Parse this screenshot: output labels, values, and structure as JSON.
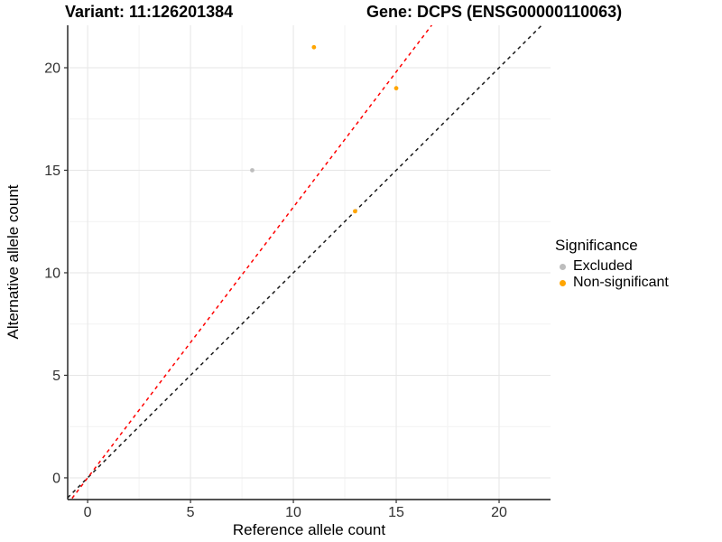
{
  "header": {
    "title_variant": "Variant: 11:126201384",
    "title_gene": "Gene: DCPS (ENSG00000110063)"
  },
  "chart_data": {
    "type": "scatter",
    "title": "Variant: 11:126201384  /  Gene: DCPS (ENSG00000110063)",
    "xlabel": "Reference allele count",
    "ylabel": "Alternative allele count",
    "xlim": [
      -0.97,
      22.5
    ],
    "ylim": [
      -1.06,
      22.07
    ],
    "x_major_ticks": [
      0,
      5,
      10,
      15,
      20
    ],
    "y_major_ticks": [
      0,
      5,
      10,
      15,
      20
    ],
    "x_minor_ticks": [
      2.5,
      7.5,
      12.5,
      17.5
    ],
    "y_minor_ticks": [
      2.5,
      7.5,
      12.5,
      17.5
    ],
    "grid": "major-and-minor",
    "colors": {
      "major_grid": "#e6e6e6",
      "minor_grid": "#f2f2f2",
      "axis_line": "#1a1a1a",
      "tick_label": "#303030",
      "identity_line": "#1a1a1a",
      "expected_line": "#ff0000"
    },
    "series": [
      {
        "name": "Excluded",
        "color": "#bdbdbd",
        "points": [
          {
            "x": 8,
            "y": 15
          }
        ]
      },
      {
        "name": "Non-significant",
        "color": "#ffa500",
        "points": [
          {
            "x": 11,
            "y": 21
          },
          {
            "x": 15,
            "y": 19
          },
          {
            "x": 13,
            "y": 13
          }
        ]
      }
    ],
    "lines": [
      {
        "name": "identity-line",
        "slope": 1.0,
        "intercept": 0,
        "color": "#1a1a1a",
        "dashed": true
      },
      {
        "name": "expected-ratio-line",
        "slope": 1.32,
        "intercept": 0,
        "color": "#ff0000",
        "dashed": true
      }
    ],
    "legend": {
      "title": "Significance",
      "position": "right",
      "items": [
        {
          "label": "Excluded",
          "color": "#bdbdbd"
        },
        {
          "label": "Non-significant",
          "color": "#ffa500"
        }
      ]
    }
  }
}
